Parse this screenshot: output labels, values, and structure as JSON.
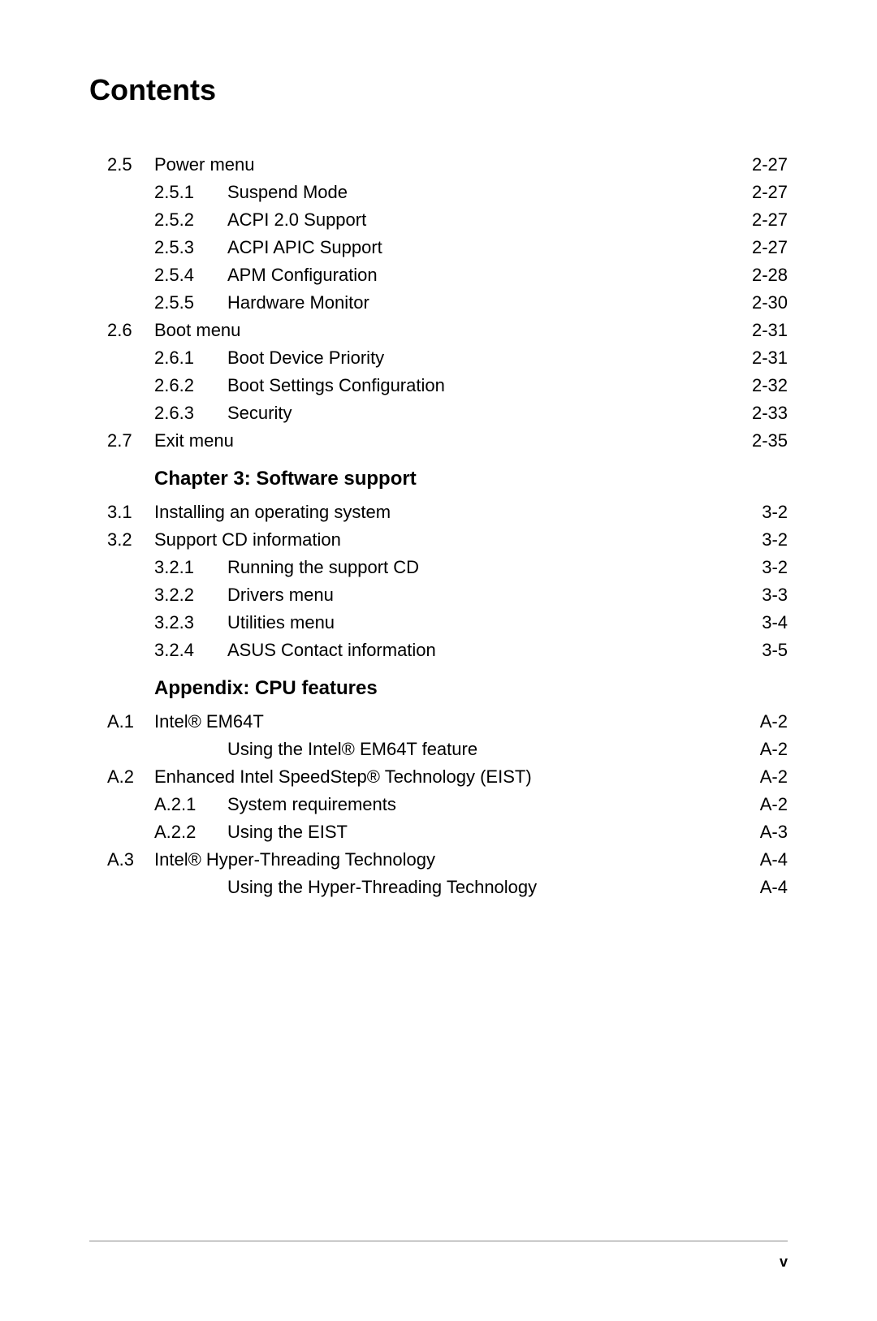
{
  "page": {
    "title": "Contents",
    "footer_page": "v",
    "text_color": "#000000",
    "background_color": "#ffffff",
    "rule_color": "#888888",
    "title_fontsize": 36,
    "body_fontsize": 22,
    "header_fontsize": 24
  },
  "toc": [
    {
      "type": "row",
      "level": 1,
      "num": "2.5",
      "title": "Power menu",
      "page": "2-27"
    },
    {
      "type": "row",
      "level": 2,
      "num": "",
      "subnum": "2.5.1",
      "title": "Suspend Mode",
      "page": "2-27"
    },
    {
      "type": "row",
      "level": 2,
      "num": "",
      "subnum": "2.5.2",
      "title": "ACPI 2.0 Support",
      "page": "2-27"
    },
    {
      "type": "row",
      "level": 2,
      "num": "",
      "subnum": "2.5.3",
      "title": "ACPI APIC Support",
      "page": "2-27"
    },
    {
      "type": "row",
      "level": 2,
      "num": "",
      "subnum": "2.5.4",
      "title": "APM Configuration",
      "page": "2-28"
    },
    {
      "type": "row",
      "level": 2,
      "num": "",
      "subnum": "2.5.5",
      "title": "Hardware Monitor",
      "page": "2-30"
    },
    {
      "type": "row",
      "level": 1,
      "num": "2.6",
      "title": "Boot menu",
      "page": "2-31"
    },
    {
      "type": "row",
      "level": 2,
      "num": "",
      "subnum": "2.6.1",
      "title": "Boot Device Priority",
      "page": "2-31"
    },
    {
      "type": "row",
      "level": 2,
      "num": "",
      "subnum": "2.6.2",
      "title": "Boot Settings Configuration",
      "page": "2-32"
    },
    {
      "type": "row",
      "level": 2,
      "num": "",
      "subnum": "2.6.3",
      "title": "Security",
      "page": "2-33"
    },
    {
      "type": "row",
      "level": 1,
      "num": "2.7",
      "title": "Exit menu",
      "page": "2-35"
    },
    {
      "type": "header",
      "title": "Chapter 3: Software support"
    },
    {
      "type": "row",
      "level": 1,
      "num": "3.1",
      "title": "Installing an operating system",
      "page": "3-2"
    },
    {
      "type": "row",
      "level": 1,
      "num": "3.2",
      "title": "Support CD information",
      "page": "3-2"
    },
    {
      "type": "row",
      "level": 2,
      "num": "",
      "subnum": "3.2.1",
      "title": "Running the support CD",
      "page": "3-2"
    },
    {
      "type": "row",
      "level": 2,
      "num": "",
      "subnum": "3.2.2",
      "title": "Drivers menu",
      "page": "3-3"
    },
    {
      "type": "row",
      "level": 2,
      "num": "",
      "subnum": "3.2.3",
      "title": "Utilities menu",
      "page": "3-4"
    },
    {
      "type": "row",
      "level": 2,
      "num": "",
      "subnum": "3.2.4",
      "title": "ASUS Contact information",
      "page": "3-5"
    },
    {
      "type": "header",
      "title": "Appendix: CPU features"
    },
    {
      "type": "row",
      "level": 1,
      "num": "A.1",
      "title": "Intel® EM64T",
      "page": "A-2"
    },
    {
      "type": "row",
      "level": 2,
      "num": "",
      "subnum": "",
      "title": "Using the Intel® EM64T feature",
      "page": "A-2"
    },
    {
      "type": "row",
      "level": 1,
      "num": "A.2",
      "title": "Enhanced Intel SpeedStep® Technology (EIST)",
      "page": "A-2"
    },
    {
      "type": "row",
      "level": 2,
      "num": "",
      "subnum": "A.2.1",
      "title": "System requirements",
      "page": "A-2"
    },
    {
      "type": "row",
      "level": 2,
      "num": "",
      "subnum": "A.2.2",
      "title": "Using the EIST",
      "page": "A-3"
    },
    {
      "type": "row",
      "level": 1,
      "num": "A.3",
      "title": "Intel® Hyper-Threading Technology",
      "page": "A-4"
    },
    {
      "type": "row",
      "level": 2,
      "num": "",
      "subnum": "",
      "title": "Using the Hyper-Threading Technology",
      "page": "A-4"
    }
  ]
}
